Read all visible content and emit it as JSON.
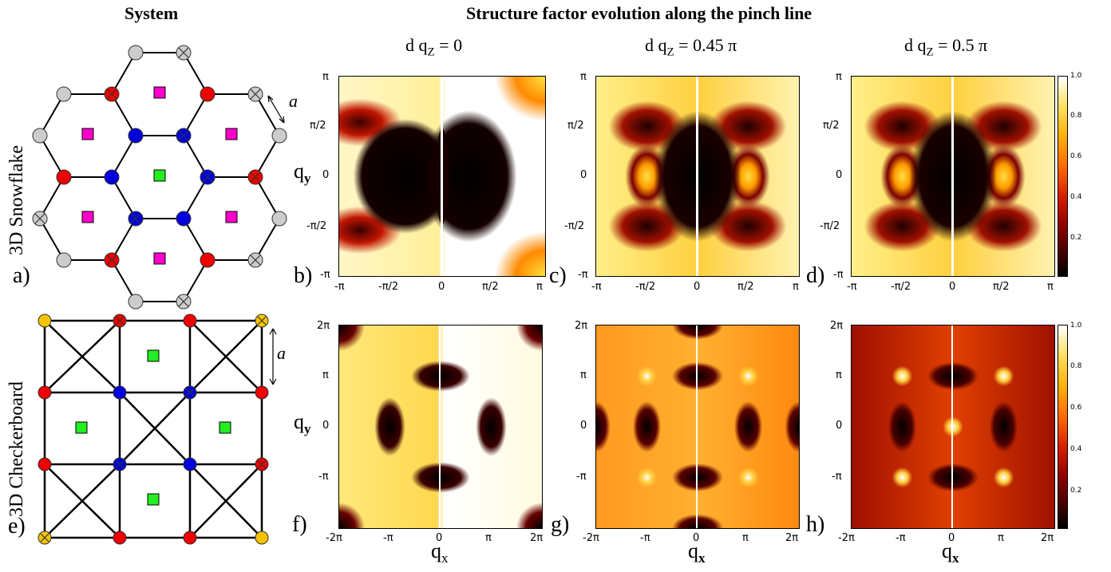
{
  "headers": {
    "system": "System",
    "evolution": "Structure factor evolution along the pinch line"
  },
  "columns": [
    "d q_Z = 0",
    "d q_Z = 0.45 π",
    "d q_Z = 0.5 π"
  ],
  "column_parts": [
    {
      "pre": "d q",
      "sub": "Z",
      "post": " = 0"
    },
    {
      "pre": "d q",
      "sub": "Z",
      "post": " = 0.45 π"
    },
    {
      "pre": "d q",
      "sub": "Z",
      "post": " = 0.5 π"
    }
  ],
  "rows": {
    "top": "3D Snowflake",
    "bottom": "3D Checkerboard"
  },
  "lattice_unit": "a",
  "panel_labels": [
    "a)",
    "b)",
    "c)",
    "d)",
    "e)",
    "f)",
    "g)",
    "h)"
  ],
  "axes": {
    "top_ticks": [
      "-π",
      "-π/2",
      "0",
      "π/2",
      "π"
    ],
    "bottom_ticks": [
      "-2π",
      "-π",
      "0",
      "π",
      "2π"
    ],
    "x_label": {
      "base": "q",
      "sub": "x"
    },
    "y_label": {
      "base": "q",
      "sub": "y"
    }
  },
  "colorbar": {
    "ticks": [
      "1.0",
      "0.8",
      "0.6",
      "0.4",
      "0.2"
    ],
    "range": [
      0,
      1
    ],
    "colormap": "hot"
  },
  "colors": {
    "magenta": "#ff00cc",
    "green": "#22ee22",
    "red": "#ee0000",
    "blue": "#0000dd",
    "gray": "#cccccc",
    "gold": "#f5c400"
  }
}
